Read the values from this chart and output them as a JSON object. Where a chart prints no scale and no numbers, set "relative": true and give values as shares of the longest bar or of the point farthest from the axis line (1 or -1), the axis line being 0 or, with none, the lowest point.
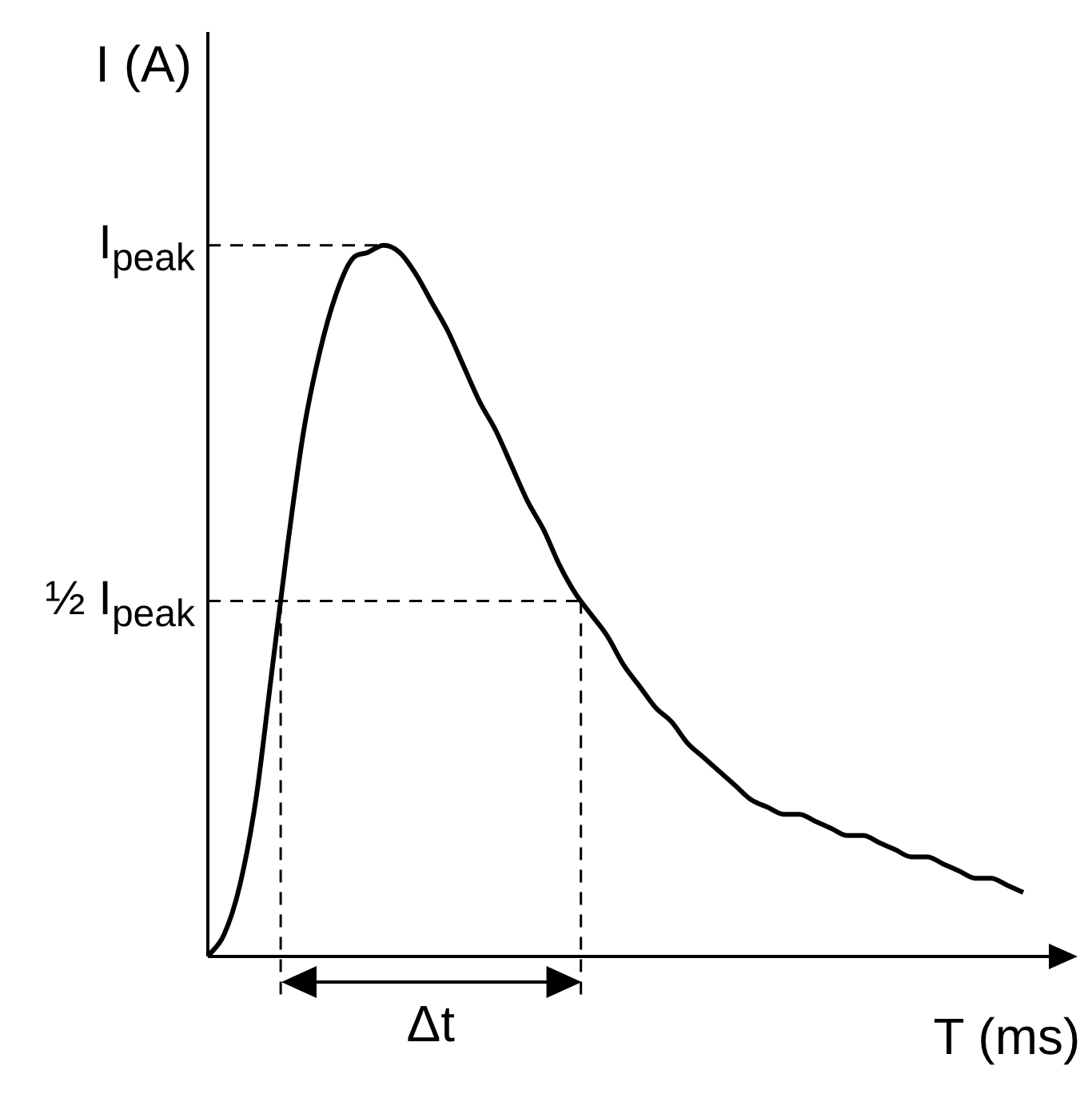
{
  "chart_data": {
    "type": "line",
    "relative": true,
    "xlabel": "T (ms)",
    "ylabel": "I (A)",
    "legend": false,
    "categories": [
      null,
      null,
      null,
      null,
      null,
      null,
      null,
      null,
      null,
      null,
      null,
      null,
      null,
      null,
      null,
      null,
      null,
      null,
      null,
      null,
      null,
      null,
      null,
      null,
      null,
      null,
      null,
      null,
      null,
      null,
      null,
      null,
      null,
      null,
      null,
      null,
      null,
      null,
      null,
      null,
      null,
      null,
      null,
      null,
      null,
      null,
      null,
      null,
      null,
      null,
      null,
      null,
      null
    ],
    "series": [
      {
        "color": "#000000",
        "values": [
          0,
          0.03,
          0.1,
          0.22,
          0.4,
          0.58,
          0.74,
          0.85,
          0.93,
          0.98,
          0.99,
          1,
          0.99,
          0.96,
          0.92,
          0.88,
          0.83,
          0.78,
          0.74,
          0.69,
          0.64,
          0.6,
          0.55,
          0.51,
          0.48,
          0.45,
          0.41,
          0.38,
          0.35,
          0.33,
          0.3,
          0.28,
          0.26,
          0.24,
          0.22,
          0.21,
          0.2,
          0.2,
          0.19,
          0.18,
          0.17,
          0.17,
          0.16,
          0.15,
          0.14,
          0.14,
          0.13,
          0.12,
          0.11,
          0.11,
          0.1,
          0.09,
          null
        ]
      }
    ],
    "ref_lines": [
      {
        "axis": "y",
        "value": 1,
        "label": "I$_{peak}$",
        "line_style": "dashed"
      },
      {
        "axis": "y",
        "value": 0.5,
        "label": "½ I$_{peak}$",
        "line_style": "dashed"
      }
    ],
    "annotations": [
      "Δt"
    ]
  }
}
